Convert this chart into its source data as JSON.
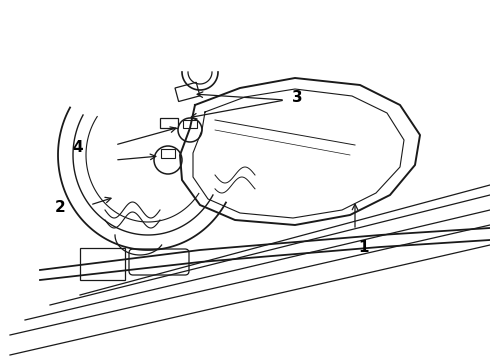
{
  "background_color": "#ffffff",
  "line_color": "#1a1a1a",
  "label_color": "#000000",
  "figsize": [
    4.9,
    3.6
  ],
  "dpi": 100,
  "label_fontsize": 11
}
